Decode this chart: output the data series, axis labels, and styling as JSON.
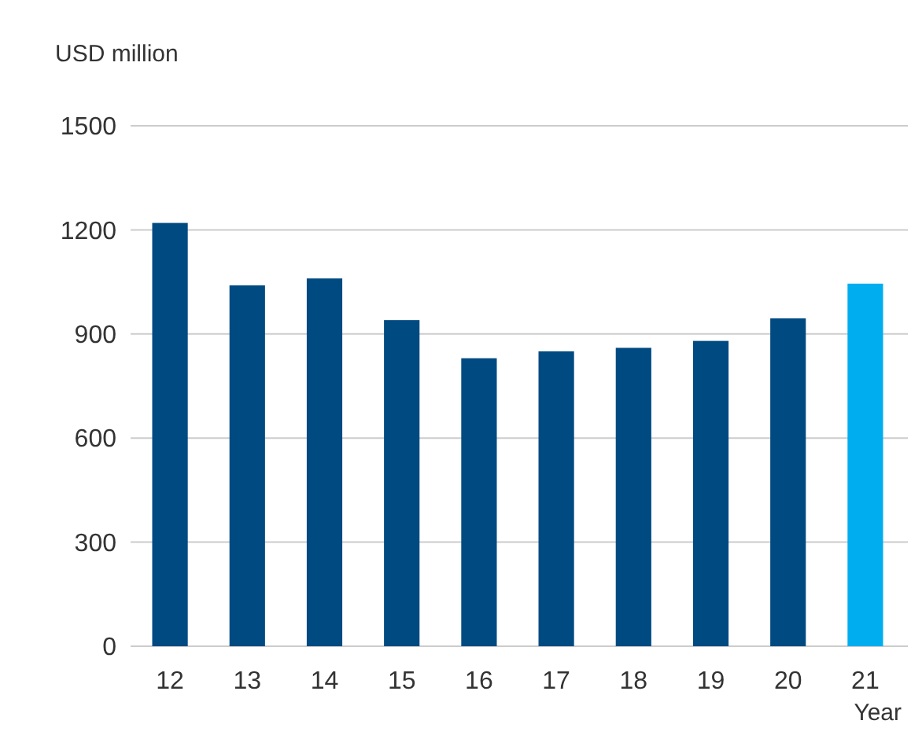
{
  "chart_data": {
    "type": "bar",
    "ylabel": "USD million",
    "xlabel": "Year",
    "categories": [
      "12",
      "13",
      "14",
      "15",
      "16",
      "17",
      "18",
      "19",
      "20",
      "21"
    ],
    "values": [
      1220,
      1040,
      1060,
      940,
      830,
      850,
      860,
      880,
      945,
      1045
    ],
    "colors": [
      "#004a82",
      "#004a82",
      "#004a82",
      "#004a82",
      "#004a82",
      "#004a82",
      "#004a82",
      "#004a82",
      "#004a82",
      "#00aeef"
    ],
    "ylim": [
      0,
      1500
    ],
    "yticks": [
      0,
      300,
      600,
      900,
      1200,
      1500
    ],
    "grid": "y"
  }
}
